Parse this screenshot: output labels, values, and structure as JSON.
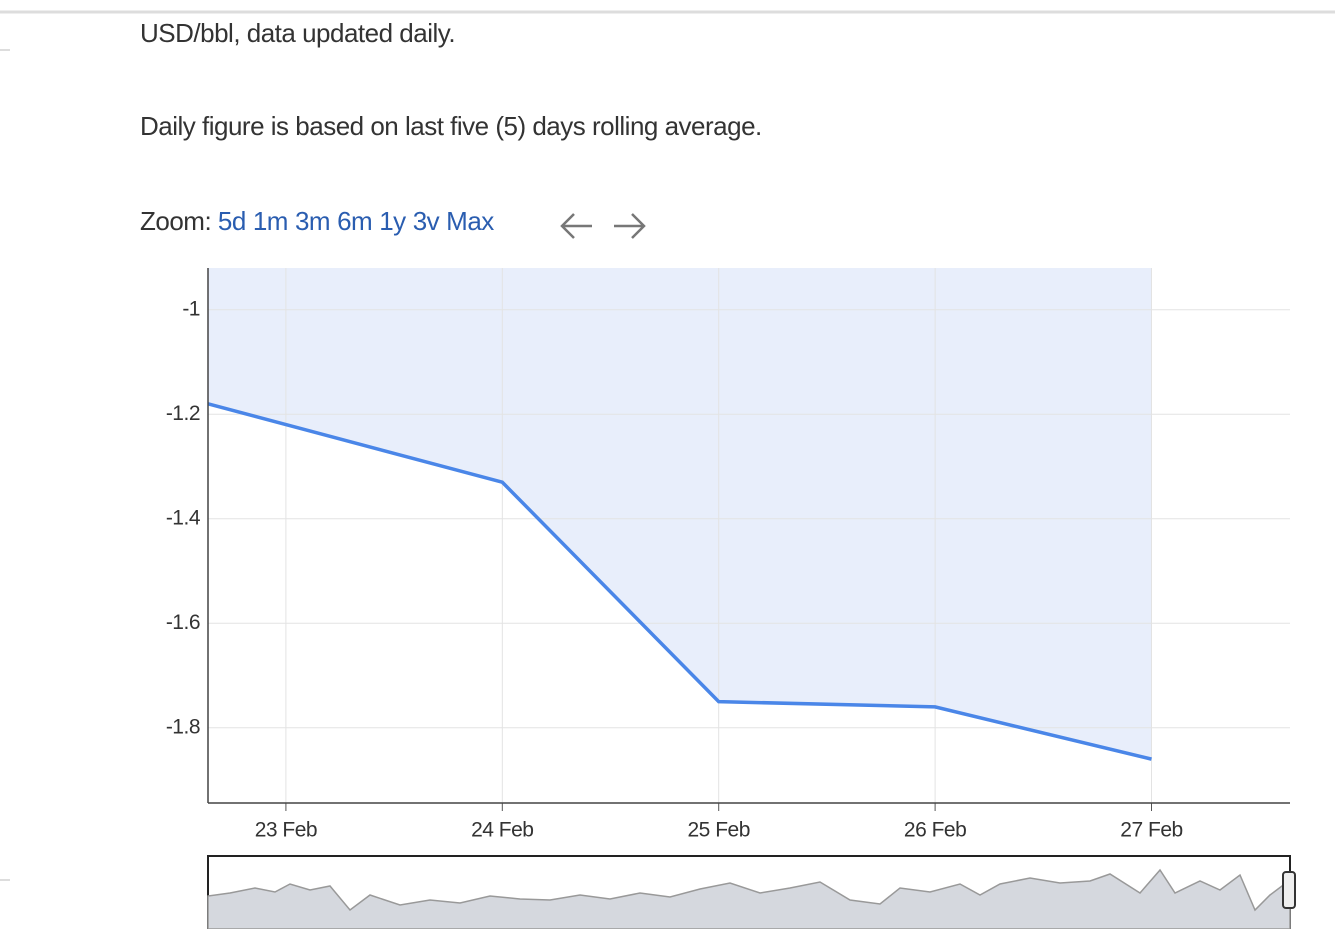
{
  "page": {
    "units_note": "USD/bbl, data updated daily.",
    "description": "Daily figure is based on last five (5) days rolling average.",
    "zoom_label": "Zoom:",
    "zoom_options": [
      "5d",
      "1m",
      "3m",
      "6m",
      "1y",
      "3v",
      "Max"
    ]
  },
  "chart_data": {
    "type": "area",
    "x": [
      22.64,
      24,
      25,
      26,
      27
    ],
    "values": [
      -1.18,
      -1.33,
      -1.75,
      -1.76,
      -1.86
    ],
    "color": "#4a86e8",
    "fill_color": "#e8eefb",
    "xlim": [
      22.64,
      27.64
    ],
    "ylim": [
      -1.944,
      -0.92
    ],
    "xticks": [
      {
        "value": 23,
        "label": "23 Feb"
      },
      {
        "value": 24,
        "label": "24 Feb"
      },
      {
        "value": 25,
        "label": "25 Feb"
      },
      {
        "value": 26,
        "label": "26 Feb"
      },
      {
        "value": 27,
        "label": "27 Feb"
      }
    ],
    "yticks": [
      -1,
      -1.2,
      -1.4,
      -1.6,
      -1.8
    ],
    "grid": true
  }
}
